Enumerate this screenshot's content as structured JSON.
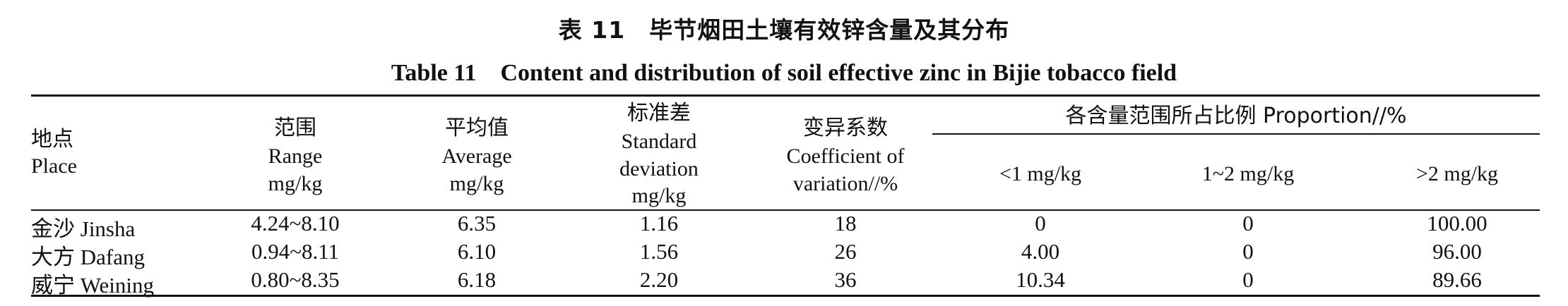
{
  "title": {
    "cn": "表 11　毕节烟田土壤有效锌含量及其分布",
    "en": "Table 11　Content and distribution of soil effective zinc in Bijie tobacco field"
  },
  "headers": {
    "place": {
      "cn": "地点",
      "en": "Place"
    },
    "range": {
      "cn": "范围",
      "en": "Range",
      "unit": "mg/kg"
    },
    "average": {
      "cn": "平均值",
      "en": "Average",
      "unit": "mg/kg"
    },
    "sd": {
      "cn": "标准差",
      "en1": "Standard",
      "en2": "deviation",
      "unit": "mg/kg"
    },
    "cv": {
      "cn": "变异系数",
      "en1": "Coefficient of",
      "en2": "variation//%"
    },
    "proportion": {
      "group": "各含量范围所占比例 Proportion//%",
      "lt1": "<1 mg/kg",
      "mid": "1~2 mg/kg",
      "gt2": ">2 mg/kg"
    }
  },
  "rows": [
    {
      "place": "金沙 Jinsha",
      "range": "4.24~8.10",
      "average": "6.35",
      "sd": "1.16",
      "cv": "18",
      "lt1": "0",
      "mid": "0",
      "gt2": "100.00"
    },
    {
      "place": "大方 Dafang",
      "range": "0.94~8.11",
      "average": "6.10",
      "sd": "1.56",
      "cv": "26",
      "lt1": "4.00",
      "mid": "0",
      "gt2": "96.00"
    },
    {
      "place": "威宁 Weining",
      "range": "0.80~8.35",
      "average": "6.18",
      "sd": "2.20",
      "cv": "36",
      "lt1": "10.34",
      "mid": "0",
      "gt2": "89.66"
    }
  ]
}
